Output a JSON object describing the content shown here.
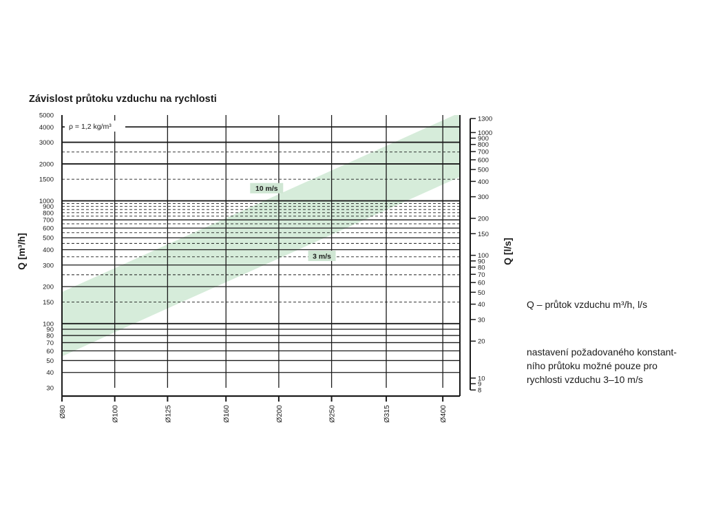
{
  "title": "Závislost průtoku vzduchu na rychlosti",
  "legend": {
    "q_description": "Q – průtok vzduchu m³/h, l/s",
    "setting_note_lines": [
      "nastavení požadovaného konstant-",
      "ního průtoku možné pouze pro",
      "rychlosti vzduchu 3–10 m/s"
    ]
  },
  "colors": {
    "band": "#d6ecda",
    "grid": "#1a1a1a",
    "label_bg": "#cfe6d3"
  },
  "chart_data": {
    "type": "area",
    "title": "Závislost průtoku vzduchu na rychlosti",
    "annotation": "ρ = 1,2  kg/m³",
    "x": {
      "categories": [
        "Ø80",
        "Ø100",
        "Ø125",
        "Ø160",
        "Ø200",
        "Ø250",
        "Ø315",
        "Ø400"
      ],
      "diameters_mm": [
        80,
        100,
        125,
        160,
        200,
        250,
        315,
        400
      ],
      "scale": "log",
      "range_mm": [
        80,
        430
      ]
    },
    "y_left": {
      "label": "Q [m³/h]",
      "scale": "log",
      "range": [
        30,
        5000
      ],
      "ticks": [
        5000,
        4000,
        3000,
        2000,
        1500,
        1000,
        900,
        800,
        700,
        600,
        500,
        400,
        300,
        200,
        150,
        100,
        90,
        80,
        70,
        60,
        50,
        40,
        30
      ],
      "solid_gridlines": [
        4000,
        3000,
        2000,
        1000,
        700,
        600,
        500,
        400,
        300,
        200,
        100,
        90,
        80,
        70,
        60,
        50,
        40
      ],
      "dashed_gridlines": [
        2500,
        1500,
        950,
        900,
        850,
        800,
        750,
        650,
        550,
        450,
        350,
        250,
        150
      ]
    },
    "y_right": {
      "label": "Q [l/s]",
      "scale": "log",
      "range": [
        8,
        1300
      ],
      "ticks": [
        1300,
        1000,
        900,
        800,
        700,
        600,
        500,
        400,
        300,
        200,
        150,
        100,
        90,
        80,
        70,
        60,
        50,
        40,
        30,
        20,
        10,
        9,
        8
      ]
    },
    "series": [
      {
        "name": "10 m/s",
        "x": [
          80,
          100,
          125,
          160,
          200,
          250,
          315,
          400,
          430
        ],
        "y": [
          181,
          283,
          442,
          724,
          1131,
          1767,
          2806,
          4524,
          5228
        ]
      },
      {
        "name": "3 m/s",
        "x": [
          80,
          100,
          125,
          160,
          200,
          250,
          315,
          400,
          430
        ],
        "y": [
          54,
          85,
          133,
          217,
          339,
          530,
          842,
          1357,
          1568
        ]
      }
    ],
    "grid": true
  }
}
